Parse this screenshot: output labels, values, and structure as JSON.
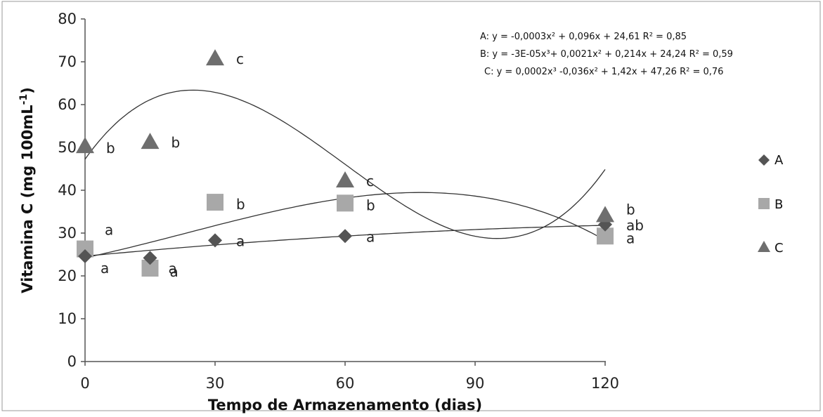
{
  "chart_data": {
    "type": "scatter",
    "title": "",
    "xlabel": "Tempo de Armazenamento (dias)",
    "ylabel_main": "Vitamina C (mg 100mL",
    "ylabel_sup": "-1",
    "ylabel_close": ")",
    "xlim": [
      0,
      120
    ],
    "ylim": [
      0,
      80
    ],
    "x_ticks": [
      "0",
      "30",
      "60",
      "90",
      "120"
    ],
    "y_ticks": [
      "0",
      "10",
      "20",
      "30",
      "40",
      "50",
      "60",
      "70",
      "80"
    ],
    "grid": false,
    "legend_position": "right",
    "series": [
      {
        "name": "A",
        "marker": "diamond",
        "color": "#545454",
        "points": [
          {
            "x": 0,
            "y": 24.6,
            "label": "a"
          },
          {
            "x": 15,
            "y": 24.2,
            "label": "a"
          },
          {
            "x": 30,
            "y": 28.3,
            "label": "a"
          },
          {
            "x": 60,
            "y": 29.3,
            "label": "a"
          },
          {
            "x": 120,
            "y": 32.0,
            "label": "ab"
          }
        ],
        "fit": {
          "type": "poly",
          "coef": [
            24.61,
            0.096,
            -0.0003
          ]
        },
        "equation": "A: y = -0,0003x² + 0,096x + 24,61 R² = 0,85"
      },
      {
        "name": "B",
        "marker": "square",
        "color": "#a8a8a8",
        "points": [
          {
            "x": 0,
            "y": 26.3,
            "label": "a"
          },
          {
            "x": 15,
            "y": 21.8,
            "label": "a"
          },
          {
            "x": 30,
            "y": 37.2,
            "label": "b"
          },
          {
            "x": 60,
            "y": 37.0,
            "label": "b"
          },
          {
            "x": 120,
            "y": 29.3,
            "label": "a"
          }
        ],
        "fit": {
          "type": "poly",
          "coef": [
            24.24,
            0.214,
            0.0021,
            -3e-05
          ]
        },
        "equation": "B: y = -3E-05x³+ 0,0021x² + 0,214x + 24,24 R² = 0,59"
      },
      {
        "name": "C",
        "marker": "triangle",
        "color": "#6e6e6e",
        "points": [
          {
            "x": 0,
            "y": 50.3,
            "label": "b"
          },
          {
            "x": 15,
            "y": 51.3,
            "label": "b"
          },
          {
            "x": 30,
            "y": 70.8,
            "label": "c"
          },
          {
            "x": 60,
            "y": 42.3,
            "label": "c"
          },
          {
            "x": 120,
            "y": 34.2,
            "label": "b"
          }
        ],
        "fit": {
          "type": "poly",
          "coef": [
            47.26,
            1.42,
            -0.036,
            0.0002
          ]
        },
        "equation": "C: y = 0,0002x³ -0,036x² + 1,42x + 47,26 R² = 0,76"
      }
    ]
  }
}
